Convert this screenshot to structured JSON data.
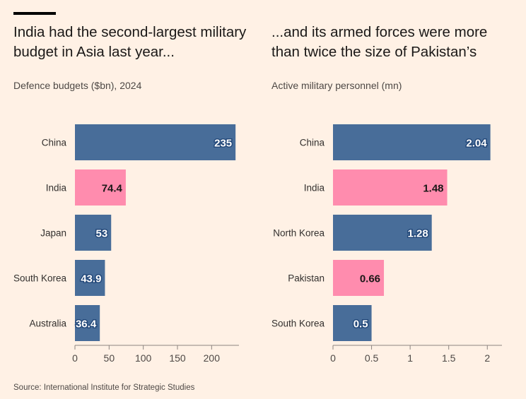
{
  "chart_data": [
    {
      "type": "bar",
      "orientation": "horizontal",
      "title": "India had the second-largest military budget in Asia last year...",
      "subtitle": "Defence budgets ($bn), 2024",
      "categories": [
        "China",
        "India",
        "Japan",
        "South Korea",
        "Australia"
      ],
      "values": [
        235,
        74.4,
        53,
        43.9,
        36.4
      ],
      "labels": [
        "235",
        "74.4",
        "53",
        "43.9",
        "36.4"
      ],
      "highlight": [
        false,
        true,
        false,
        false,
        false
      ],
      "xlim": [
        0,
        240
      ],
      "xticks": [
        0,
        50,
        100,
        150,
        200
      ],
      "xtick_labels": [
        "0",
        "50",
        "100",
        "150",
        "200"
      ],
      "grid": false
    },
    {
      "type": "bar",
      "orientation": "horizontal",
      "title": "...and its armed forces were more than twice the size of Pakistan’s",
      "subtitle": "Active military personnel (mn)",
      "categories": [
        "China",
        "India",
        "North Korea",
        "Pakistan",
        "South Korea"
      ],
      "values": [
        2.04,
        1.48,
        1.28,
        0.66,
        0.5
      ],
      "labels": [
        "2.04",
        "1.48",
        "1.28",
        "0.66",
        "0.5"
      ],
      "highlight": [
        false,
        true,
        false,
        true,
        false
      ],
      "xlim": [
        0,
        2.19
      ],
      "xticks": [
        0,
        0.5,
        1,
        1.5,
        2
      ],
      "xtick_labels": [
        "0",
        "0.5",
        "1",
        "1.5",
        "2"
      ],
      "grid": false
    }
  ],
  "source": "Source: International Institute for Strategic Studies",
  "colors": {
    "background": "#fff1e5",
    "bar": "#486d99",
    "highlight": "#ff8cae",
    "axis": "#8c8580"
  }
}
